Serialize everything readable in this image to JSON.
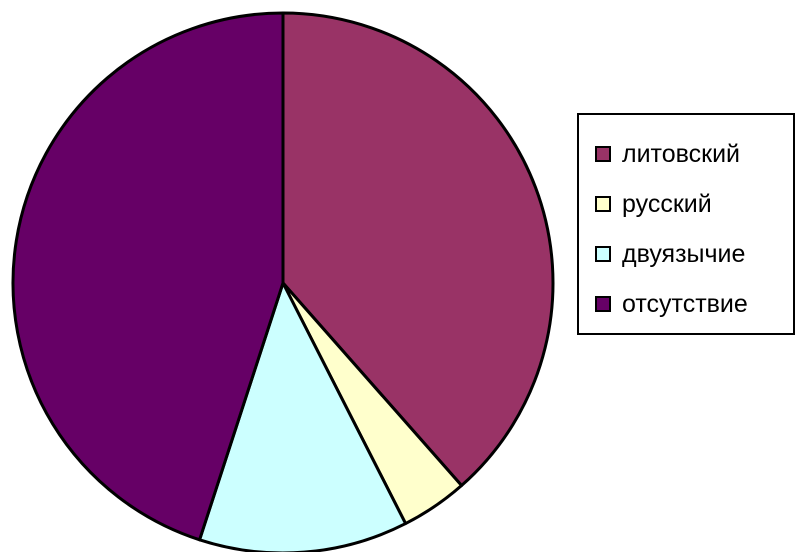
{
  "chart_data": {
    "type": "pie",
    "title": "",
    "start_angle_deg": 0,
    "direction": "clockwise",
    "slices": [
      {
        "label": "литовский",
        "value": 38.5,
        "color": "#993366"
      },
      {
        "label": "русский",
        "value": 4.0,
        "color": "#FFFFCC"
      },
      {
        "label": "двуязычие",
        "value": 12.5,
        "color": "#CCFFFF"
      },
      {
        "label": "отсутствие",
        "value": 45.0,
        "color": "#660066"
      }
    ],
    "legend": "right"
  }
}
